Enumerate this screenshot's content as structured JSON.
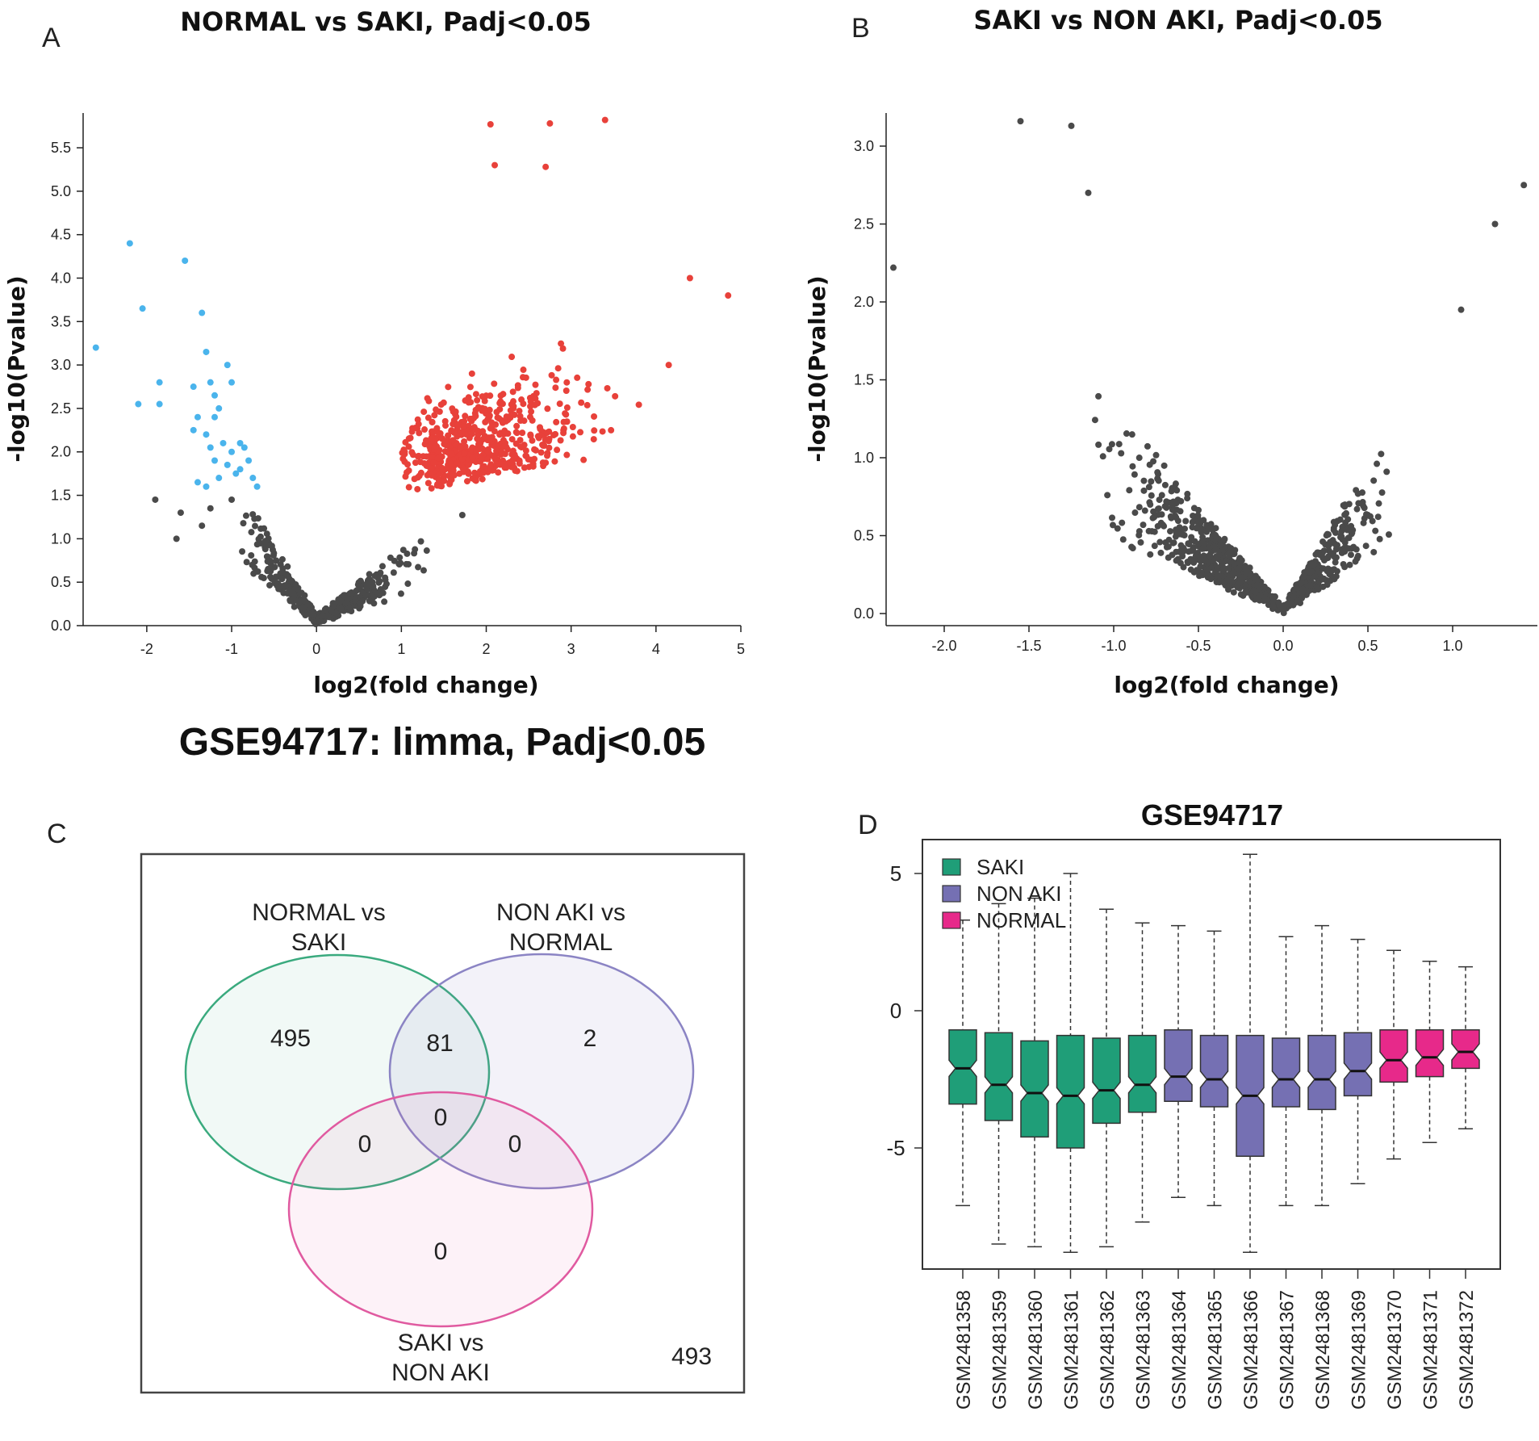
{
  "panels": {
    "a": {
      "letter": "A",
      "title": "NORMAL vs SAKI, Padj<0.05",
      "xlabel": "log2(fold change)",
      "ylabel": "-log10(Pvalue)"
    },
    "b": {
      "letter": "B",
      "title": "SAKI vs NON AKI, Padj<0.05",
      "xlabel": "log2(fold change)",
      "ylabel": "-log10(Pvalue)"
    },
    "c": {
      "letter": "C",
      "heading": "GSE94717: limma, Padj<0.05"
    },
    "d": {
      "letter": "D",
      "title": "GSE94717"
    }
  },
  "chart_data": [
    {
      "type": "scatter",
      "id": "volcano-a",
      "title": "NORMAL vs SAKI, Padj<0.05",
      "xlabel": "log2(fold change)",
      "ylabel": "-log10(Pvalue)",
      "xlim": [
        -2.75,
        5
      ],
      "ylim": [
        0,
        5.9
      ],
      "xticks": [
        -2,
        -1,
        0,
        1,
        2,
        3,
        4,
        5
      ],
      "yticks": [
        0.0,
        0.5,
        1.0,
        1.5,
        2.0,
        2.5,
        3.0,
        3.5,
        4.0,
        4.5,
        5.0,
        5.5
      ],
      "colors": {
        "up": "#e8413a",
        "down": "#4ab4ec",
        "ns": "#4a4a4a"
      },
      "series": [
        {
          "name": "down-regulated",
          "color": "#4ab4ec",
          "points": [
            [
              -2.6,
              3.2
            ],
            [
              -2.2,
              4.4
            ],
            [
              -2.05,
              3.65
            ],
            [
              -2.1,
              2.55
            ],
            [
              -1.85,
              2.8
            ],
            [
              -1.85,
              2.55
            ],
            [
              -1.55,
              4.2
            ],
            [
              -1.35,
              3.6
            ],
            [
              -1.3,
              3.15
            ],
            [
              -1.45,
              2.75
            ],
            [
              -1.25,
              2.8
            ],
            [
              -1.2,
              2.65
            ],
            [
              -1.4,
              2.4
            ],
            [
              -1.3,
              2.2
            ],
            [
              -1.15,
              2.5
            ],
            [
              -1.05,
              3.0
            ],
            [
              -1.0,
              2.8
            ],
            [
              -1.1,
              2.1
            ],
            [
              -1.0,
              2.0
            ],
            [
              -0.9,
              2.1
            ],
            [
              -0.8,
              1.9
            ],
            [
              -0.75,
              1.7
            ],
            [
              -1.2,
              1.9
            ],
            [
              -1.3,
              1.6
            ],
            [
              -1.4,
              1.65
            ],
            [
              -0.95,
              1.75
            ],
            [
              -1.05,
              1.85
            ],
            [
              -0.85,
              2.05
            ],
            [
              -0.7,
              1.6
            ],
            [
              -1.25,
              2.05
            ],
            [
              -1.15,
              1.7
            ],
            [
              -0.9,
              1.8
            ],
            [
              -1.45,
              2.25
            ],
            [
              -1.2,
              2.4
            ]
          ]
        }
      ],
      "summary": "~580 significant up-regulated genes (red, log2FC 1 to 4.9, -log10P 1.5 to 5.8), ~34 down-regulated genes (blue, log2FC -2.6 to -0.7), remainder non-significant (dark grey) forming a V near the origin",
      "extremes_up": [
        [
          3.4,
          5.82
        ],
        [
          2.75,
          5.78
        ],
        [
          2.05,
          5.77
        ],
        [
          2.1,
          5.3
        ],
        [
          2.7,
          5.28
        ],
        [
          4.85,
          3.8
        ],
        [
          4.4,
          4.0
        ],
        [
          4.15,
          3.0
        ]
      ]
    },
    {
      "type": "scatter",
      "id": "volcano-b",
      "title": "SAKI vs NON AKI, Padj<0.05",
      "xlabel": "log2(fold change)",
      "ylabel": "-log10(Pvalue)",
      "xlim": [
        -2.35,
        1.5
      ],
      "ylim": [
        0,
        3.2
      ],
      "xticks": [
        -2.0,
        -1.5,
        -1.0,
        -0.5,
        0.0,
        0.5,
        1.0
      ],
      "yticks": [
        0.0,
        0.5,
        1.0,
        1.5,
        2.0,
        2.5,
        3.0
      ],
      "color": "#4a4a4a",
      "summary": "no significant genes; all points dark grey forming a V with minimum at 0",
      "extremes": [
        [
          -1.55,
          3.16
        ],
        [
          -1.25,
          3.13
        ],
        [
          -1.15,
          2.7
        ],
        [
          1.42,
          2.75
        ],
        [
          1.25,
          2.5
        ],
        [
          -2.3,
          2.22
        ],
        [
          1.05,
          1.95
        ]
      ]
    },
    {
      "type": "venn",
      "id": "venn-c",
      "sets": [
        "NORMAL vs SAKI",
        "NON AKI vs NORMAL",
        "SAKI vs NON AKI"
      ],
      "regions": {
        "only_normal_saki": 495,
        "normal_saki_and_nonaki_normal": 81,
        "only_nonaki_normal": 2,
        "all_three": 0,
        "normal_saki_and_saki_nonaki": 0,
        "nonaki_normal_and_saki_nonaki": 0,
        "only_saki_nonaki": 0,
        "outside": 493
      },
      "set_labels": [
        [
          "NORMAL vs",
          "SAKI"
        ],
        [
          "NON AKI vs",
          "NORMAL"
        ],
        [
          "SAKI vs",
          "NON AKI"
        ]
      ],
      "colors": [
        "#3aaa7e",
        "#8b84c4",
        "#e05aa0"
      ]
    },
    {
      "type": "boxplot",
      "id": "boxplot-d",
      "title": "GSE94717",
      "ylim": [
        -9,
        6
      ],
      "yticks": [
        5,
        0,
        -5
      ],
      "legend": [
        {
          "label": "SAKI",
          "color": "#1f9e78"
        },
        {
          "label": "NON AKI",
          "color": "#7570b3"
        },
        {
          "label": "NORMAL",
          "color": "#e7298a"
        }
      ],
      "boxes": [
        {
          "label": "GSM2481358",
          "group": "SAKI",
          "min": -7.1,
          "q1": -3.4,
          "median": -2.1,
          "q3": -0.7,
          "max": 3.3
        },
        {
          "label": "GSM2481359",
          "group": "SAKI",
          "min": -8.5,
          "q1": -4.0,
          "median": -2.7,
          "q3": -0.8,
          "max": 3.9
        },
        {
          "label": "GSM2481360",
          "group": "SAKI",
          "min": -8.6,
          "q1": -4.6,
          "median": -3.0,
          "q3": -1.1,
          "max": 4.1
        },
        {
          "label": "GSM2481361",
          "group": "SAKI",
          "min": -8.8,
          "q1": -5.0,
          "median": -3.1,
          "q3": -0.9,
          "max": 5.0
        },
        {
          "label": "GSM2481362",
          "group": "SAKI",
          "min": -8.6,
          "q1": -4.1,
          "median": -2.9,
          "q3": -1.0,
          "max": 3.7
        },
        {
          "label": "GSM2481363",
          "group": "SAKI",
          "min": -7.7,
          "q1": -3.7,
          "median": -2.7,
          "q3": -0.9,
          "max": 3.2
        },
        {
          "label": "GSM2481364",
          "group": "NON AKI",
          "min": -6.8,
          "q1": -3.3,
          "median": -2.4,
          "q3": -0.7,
          "max": 3.1
        },
        {
          "label": "GSM2481365",
          "group": "NON AKI",
          "min": -7.1,
          "q1": -3.5,
          "median": -2.5,
          "q3": -0.9,
          "max": 2.9
        },
        {
          "label": "GSM2481366",
          "group": "NON AKI",
          "min": -8.8,
          "q1": -5.3,
          "median": -3.1,
          "q3": -0.9,
          "max": 5.7
        },
        {
          "label": "GSM2481367",
          "group": "NON AKI",
          "min": -7.1,
          "q1": -3.5,
          "median": -2.5,
          "q3": -1.0,
          "max": 2.7
        },
        {
          "label": "GSM2481368",
          "group": "NON AKI",
          "min": -7.1,
          "q1": -3.6,
          "median": -2.5,
          "q3": -0.9,
          "max": 3.1
        },
        {
          "label": "GSM2481369",
          "group": "NON AKI",
          "min": -6.3,
          "q1": -3.1,
          "median": -2.2,
          "q3": -0.8,
          "max": 2.6
        },
        {
          "label": "GSM2481370",
          "group": "NORMAL",
          "min": -5.4,
          "q1": -2.6,
          "median": -1.8,
          "q3": -0.7,
          "max": 2.2
        },
        {
          "label": "GSM2481371",
          "group": "NORMAL",
          "min": -4.8,
          "q1": -2.4,
          "median": -1.7,
          "q3": -0.7,
          "max": 1.8
        },
        {
          "label": "GSM2481372",
          "group": "NORMAL",
          "min": -4.3,
          "q1": -2.1,
          "median": -1.5,
          "q3": -0.7,
          "max": 1.6
        }
      ]
    }
  ]
}
